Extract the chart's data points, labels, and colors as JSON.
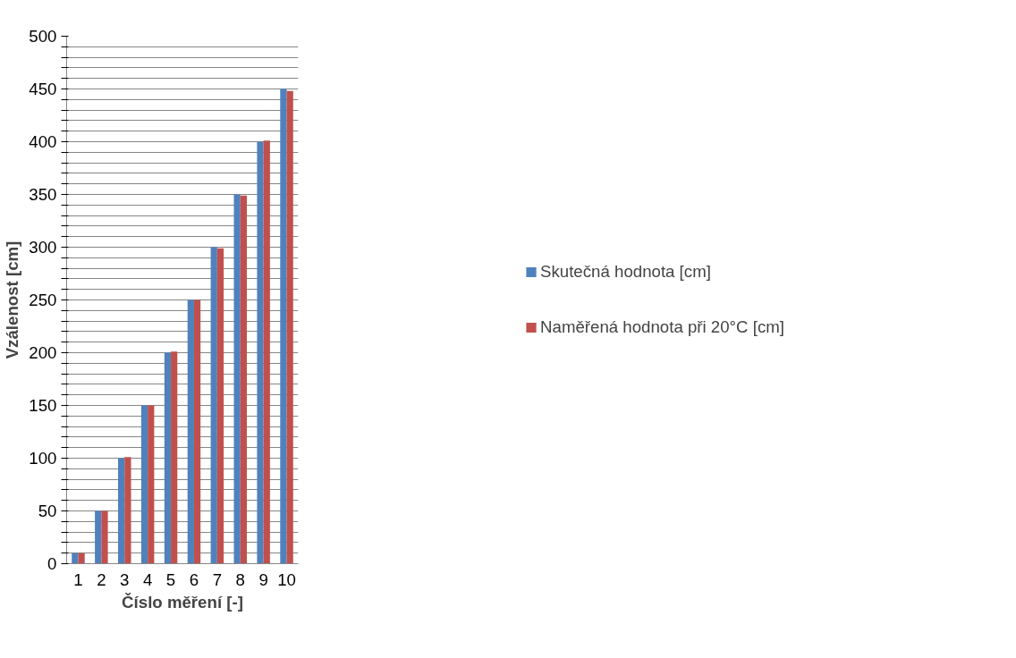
{
  "chart_data": {
    "type": "bar",
    "xlabel": "Číslo měření [-]",
    "ylabel": "Vzálenost [cm]",
    "categories": [
      "1",
      "2",
      "3",
      "4",
      "5",
      "6",
      "7",
      "8",
      "9",
      "10"
    ],
    "series": [
      {
        "name": "Skutečná hodnota [cm]",
        "color": "#4f81bd",
        "values": [
          10,
          50,
          100,
          150,
          200,
          250,
          300,
          350,
          400,
          450
        ]
      },
      {
        "name": "Naměřená hodnota při 20°C [cm]",
        "color": "#c0504d",
        "values": [
          10,
          50,
          101,
          150,
          201,
          250,
          299,
          349,
          401,
          448
        ]
      }
    ],
    "ylim": [
      0,
      500
    ],
    "yticks": [
      0,
      {
        "value": 10,
        "label": null
      },
      {
        "value": 20,
        "label": null
      },
      {
        "value": 30,
        "label": null
      },
      {
        "value": 40,
        "label": null
      },
      50,
      {
        "value": 60,
        "label": null
      },
      {
        "value": 70,
        "label": null
      },
      {
        "value": 80,
        "label": null
      },
      {
        "value": 90,
        "label": null
      },
      100,
      {
        "value": 110,
        "label": null
      },
      {
        "value": 120,
        "label": null
      },
      {
        "value": 130,
        "label": null
      },
      {
        "value": 140,
        "label": null
      },
      150,
      {
        "value": 160,
        "label": null
      },
      {
        "value": 170,
        "label": null
      },
      {
        "value": 180,
        "label": null
      },
      {
        "value": 190,
        "label": null
      },
      200,
      {
        "value": 210,
        "label": null
      },
      {
        "value": 220,
        "label": null
      },
      {
        "value": 230,
        "label": null
      },
      {
        "value": 240,
        "label": null
      },
      250,
      {
        "value": 260,
        "label": null
      },
      {
        "value": 270,
        "label": null
      },
      {
        "value": 280,
        "label": null
      },
      {
        "value": 290,
        "label": null
      },
      300,
      {
        "value": 310,
        "label": null
      },
      {
        "value": 320,
        "label": null
      },
      {
        "value": 330,
        "label": null
      },
      {
        "value": 340,
        "label": null
      },
      350,
      {
        "value": 360,
        "label": null
      },
      {
        "value": 370,
        "label": null
      },
      {
        "value": 380,
        "label": null
      },
      {
        "value": 390,
        "label": null
      },
      400,
      {
        "value": 410,
        "label": null
      },
      {
        "value": 420,
        "label": null
      },
      {
        "value": 430,
        "label": null
      },
      {
        "value": 440,
        "label": null
      },
      450,
      {
        "value": 460,
        "label": null
      },
      {
        "value": 470,
        "label": null
      },
      {
        "value": 480,
        "label": null
      },
      {
        "value": 490,
        "label": null
      },
      500
    ],
    "grid": "y",
    "legend": "right"
  }
}
